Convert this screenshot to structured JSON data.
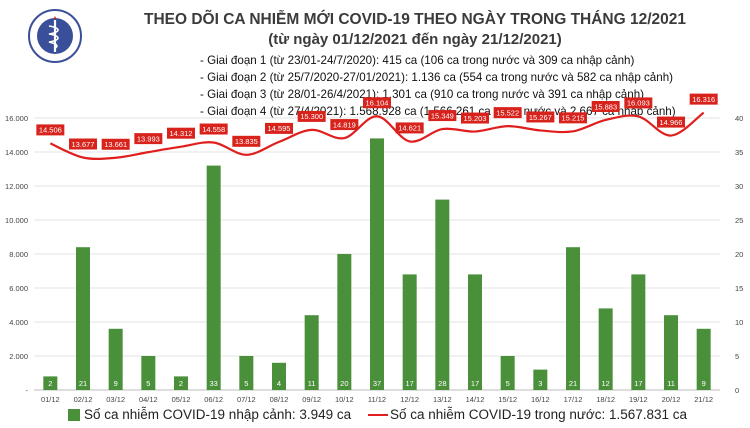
{
  "header": {
    "logo_text": "BỘ Y TẾ · MINISTRY OF HEALTH",
    "title": "THEO DÕI CA NHIỄM MỚI COVID-19 THEO NGÀY TRONG THÁNG 12/2021",
    "subtitle": "(từ ngày 01/12/2021 đến ngày 21/12/2021)",
    "periods": [
      "- Giai đoạn 1 (từ 23/01-24/7/2020): 415 ca (106 ca trong nước và 309 ca nhập cảnh)",
      "- Giai đoạn 2 (từ 25/7/2020-27/01/2021): 1.136 ca (554 ca trong nước và 582 ca nhập cảnh)",
      "- Giai đoạn 3 (từ 28/01-26/4/2021): 1.301 ca (910 ca trong nước và 391 ca nhập cảnh)",
      "- Giai đoạn 4 (từ 27/4/2021): 1.568.928 ca (1.566.261 ca trong nước và 2.667 ca nhập cảnh)"
    ]
  },
  "legend": {
    "bar_label": "Số ca nhiễm COVID-19 nhập cảnh: 3.949 ca",
    "line_label": "Số ca nhiễm COVID-19 trong nước: 1.567.831 ca"
  },
  "colors": {
    "bar": "#4a8f3a",
    "line": "#e01e1e",
    "label_bg": "#d8221c",
    "grid": "#e3e3e3"
  },
  "chart_data": {
    "type": "bar",
    "categories": [
      "01/12",
      "02/12",
      "03/12",
      "04/12",
      "05/12",
      "06/12",
      "07/12",
      "08/12",
      "09/12",
      "10/12",
      "11/12",
      "12/12",
      "13/12",
      "14/12",
      "15/12",
      "16/12",
      "17/12",
      "18/12",
      "19/12",
      "20/12",
      "21/12"
    ],
    "series": [
      {
        "axis": "right",
        "type": "bar",
        "values": [
          2,
          21,
          9,
          5,
          2,
          33,
          5,
          4,
          11,
          20,
          37,
          17,
          28,
          17,
          5,
          3,
          21,
          12,
          17,
          11,
          9
        ],
        "labels": [
          "2",
          "21",
          "9",
          "5",
          "2",
          "33",
          "5",
          "4",
          "11",
          "20",
          "37",
          "17",
          "28",
          "17",
          "5",
          "3",
          "21",
          "12",
          "17",
          "11",
          "9"
        ]
      },
      {
        "axis": "left",
        "type": "line",
        "values": [
          14506,
          13677,
          13661,
          13993,
          14312,
          14558,
          13835,
          14595,
          15300,
          14819,
          16104,
          14621,
          15349,
          15203,
          15522,
          15267,
          15215,
          15883,
          16093,
          14966,
          16316
        ],
        "labels": [
          "14.506",
          "13.677",
          "13.661",
          "13.993",
          "14.312",
          "14.558",
          "13.835",
          "14.595",
          "15.300",
          "14.819",
          "16.104",
          "14.621",
          "15.349",
          "15.203",
          "15.522",
          "15.267",
          "15.215",
          "15.883",
          "16.093",
          "14.966",
          "16.316"
        ]
      }
    ],
    "left_axis": {
      "ylim": [
        0,
        16000
      ],
      "ticks": [
        "-",
        "2.000",
        "4.000",
        "6.000",
        "8.000",
        "10.000",
        "12.000",
        "14.000",
        "16.000"
      ]
    },
    "right_axis": {
      "ylim": [
        0,
        40
      ],
      "ticks": [
        "0",
        "5",
        "10",
        "15",
        "20",
        "25",
        "30",
        "35",
        "40"
      ]
    },
    "grid": true,
    "legend_position": "bottom"
  }
}
